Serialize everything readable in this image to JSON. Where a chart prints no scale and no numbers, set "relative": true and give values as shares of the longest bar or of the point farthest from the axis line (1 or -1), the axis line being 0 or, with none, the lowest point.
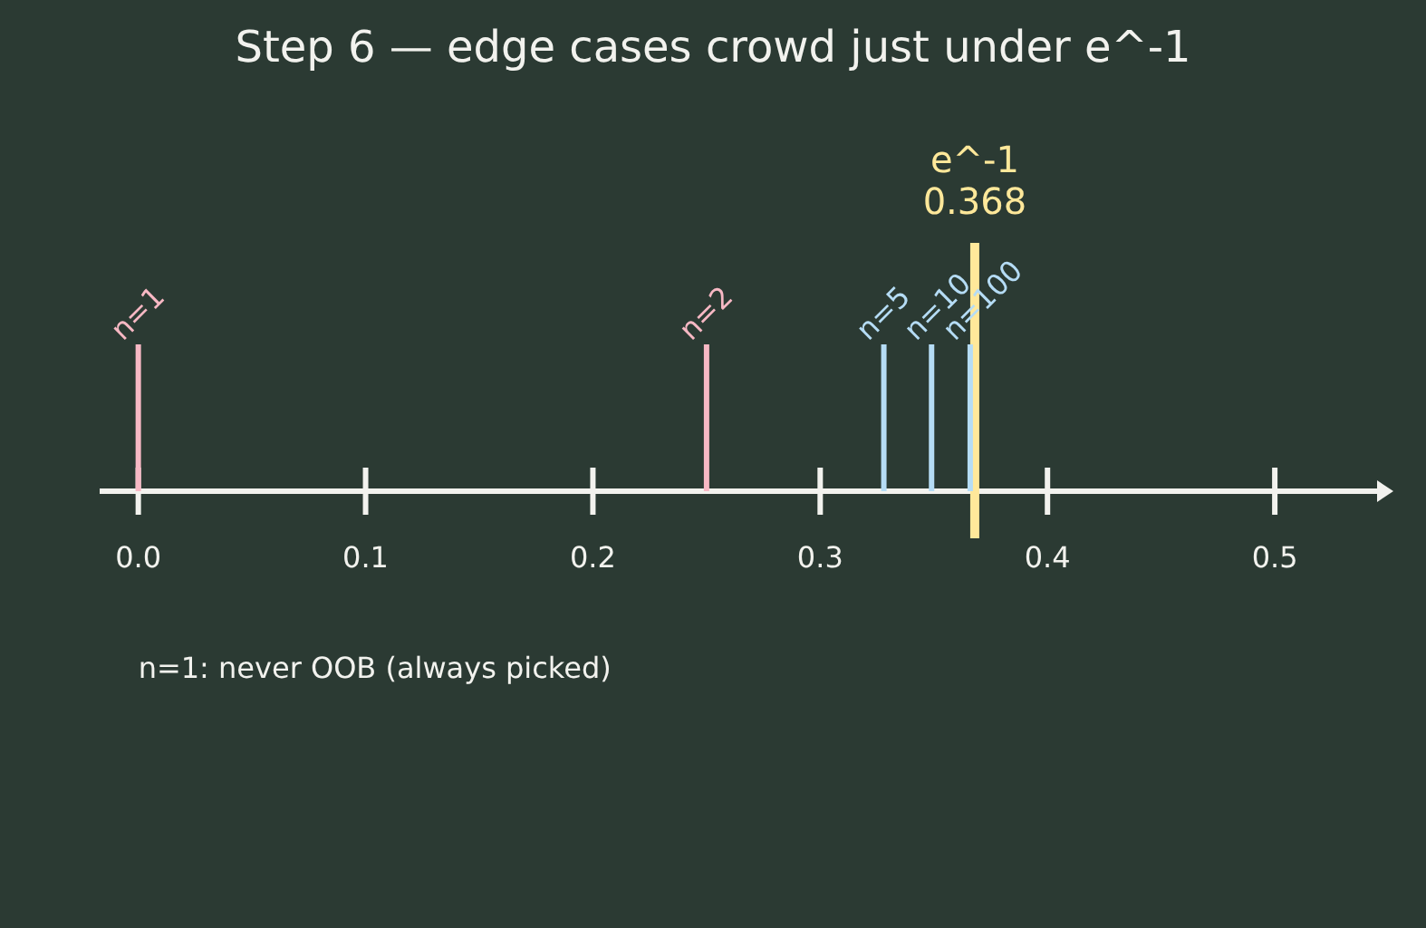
{
  "chart_data": {
    "type": "bar",
    "title": "Step 6 — edge cases crowd just under e^-1",
    "relative": true,
    "xlim": [
      -0.017,
      0.545
    ],
    "xticks": [
      {
        "value": 0,
        "label": "0.0"
      },
      0.1,
      0.2,
      0.3,
      0.4,
      0.5
    ],
    "grid": false,
    "series": [
      {
        "name": "n=1",
        "color": "#f7b8c4",
        "x": [
          0
        ],
        "values": [
          1
        ]
      },
      {
        "name": "n=2",
        "color": "#f7b8c4",
        "x": [
          0.25
        ],
        "values": [
          1
        ]
      },
      {
        "name": "n=5",
        "color": "#b5dcf5",
        "x": [
          0.328
        ],
        "values": [
          1
        ]
      },
      {
        "name": "n=10",
        "color": "#b5dcf5",
        "x": [
          0.349
        ],
        "values": [
          1
        ]
      },
      {
        "name": "n=100",
        "color": "#b5dcf5",
        "x": [
          0.366
        ],
        "values": [
          1
        ]
      }
    ],
    "ref_lines": [
      {
        "axis": "x",
        "value": 0.368,
        "label": "e^-1\n0.368",
        "color": "#ffe89a"
      }
    ],
    "annotations": [
      "n=1: never OOB (always picked)"
    ]
  }
}
